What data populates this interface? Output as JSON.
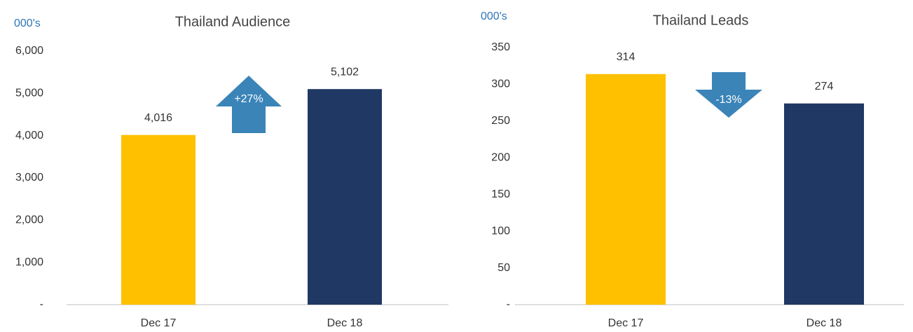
{
  "chart_data": [
    {
      "type": "bar",
      "title": "Thailand Audience",
      "unit_label": "000's",
      "categories": [
        "Dec 17",
        "Dec 18"
      ],
      "values": [
        4016,
        5102
      ],
      "value_labels": [
        "4,016",
        "5,102"
      ],
      "colors": [
        "#ffc000",
        "#203864"
      ],
      "annotation": "+27%",
      "annotation_direction": "up",
      "ylim": [
        0,
        6000
      ],
      "yticks": [
        {
          "value": 0,
          "label": "-"
        },
        {
          "value": 1000,
          "label": "1,000"
        },
        {
          "value": 2000,
          "label": "2,000"
        },
        {
          "value": 3000,
          "label": "3,000"
        },
        {
          "value": 4000,
          "label": "4,000"
        },
        {
          "value": 5000,
          "label": "5,000"
        },
        {
          "value": 6000,
          "label": "6,000"
        }
      ],
      "grid": false
    },
    {
      "type": "bar",
      "title": "Thailand Leads",
      "unit_label": "000's",
      "categories": [
        "Dec 17",
        "Dec 18"
      ],
      "values": [
        314,
        274
      ],
      "colors": [
        "#ffc000",
        "#203864"
      ],
      "annotation": "-13%",
      "annotation_direction": "down",
      "ylim": [
        0,
        350
      ],
      "yticks": [
        {
          "value": 0,
          "label": "-"
        },
        50,
        100,
        150,
        200,
        250,
        300,
        350
      ],
      "grid": false
    }
  ]
}
